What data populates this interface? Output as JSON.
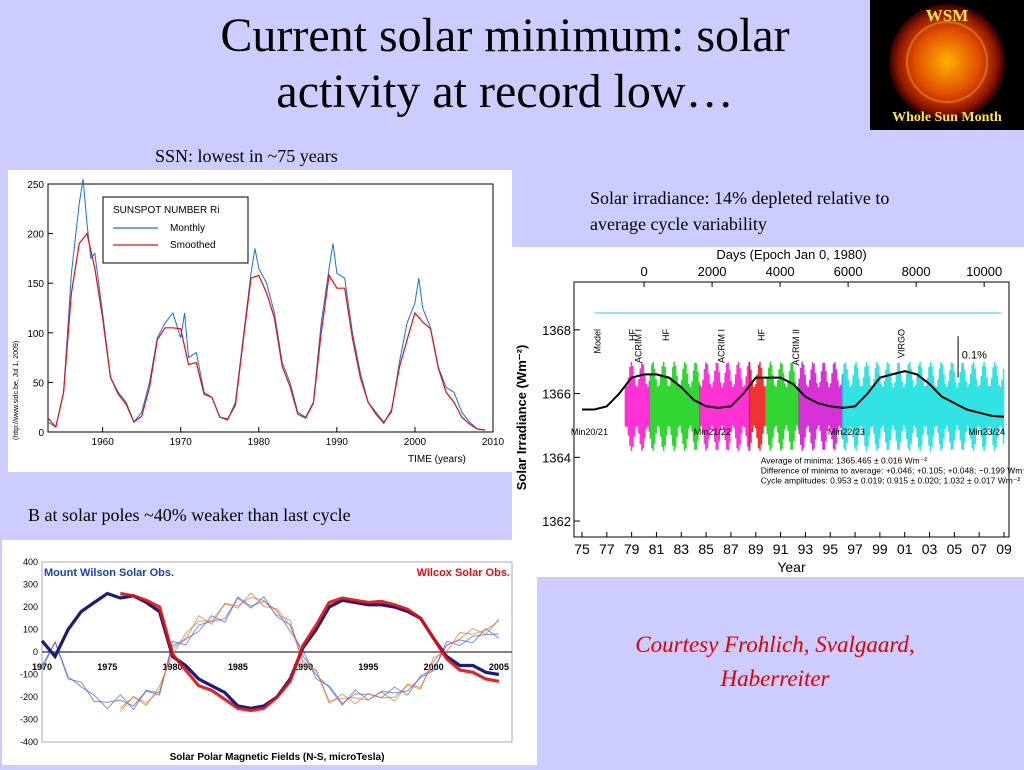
{
  "title_line1": "Current solar minimum: solar",
  "title_line2": "activity at record low…",
  "logo": {
    "top_text": "WSM",
    "bottom_text": "Whole Sun Month"
  },
  "captions": {
    "ssn": "SSN: lowest in ~75 years",
    "irradiance_line1": "Solar irradiance: 14% depleted relative to",
    "irradiance_line2": "average cycle variability",
    "polar": "B at solar poles ~40% weaker than last cycle"
  },
  "credit_line1": "Courtesy Frohlich, Svalgaard,",
  "credit_line2": "Haberreiter",
  "colors": {
    "background": "#ccccff",
    "credit": "#e00000",
    "monthly": "#1a6fe0",
    "smoothed": "#e01010"
  },
  "chart_data": [
    {
      "type": "line",
      "legend_title": "SUNSPOT NUMBER Ri",
      "legend_placement": "top-left",
      "xlabel": "TIME (years)",
      "side_note": "(http://www.sidc.be, Jul 1, 2009)",
      "xlim": [
        1953,
        2010
      ],
      "ylim": [
        0,
        250
      ],
      "xticks": [
        1960,
        1970,
        1980,
        1990,
        2000,
        2010
      ],
      "yticks": [
        0,
        50,
        100,
        150,
        200,
        250
      ],
      "series": [
        {
          "name": "Monthly",
          "color": "#1a6fe0",
          "x": [
            1953,
            1954,
            1955,
            1956,
            1957,
            1957.5,
            1958,
            1958.5,
            1959,
            1960,
            1961,
            1962,
            1963,
            1964,
            1965,
            1966,
            1967,
            1968,
            1969,
            1970,
            1970.5,
            1971,
            1972,
            1973,
            1974,
            1975,
            1976,
            1977,
            1978,
            1979,
            1979.5,
            1980,
            1981,
            1982,
            1983,
            1984,
            1985,
            1986,
            1987,
            1988,
            1989,
            1989.5,
            1990,
            1991,
            1992,
            1993,
            1994,
            1995,
            1996,
            1997,
            1998,
            1999,
            2000,
            2000.5,
            2001,
            2002,
            2003,
            2004,
            2005,
            2006,
            2007,
            2008,
            2009
          ],
          "y": [
            10,
            5,
            40,
            160,
            230,
            255,
            210,
            175,
            180,
            120,
            55,
            40,
            30,
            10,
            20,
            50,
            95,
            110,
            120,
            95,
            120,
            75,
            80,
            40,
            35,
            15,
            12,
            30,
            95,
            160,
            185,
            165,
            150,
            120,
            70,
            50,
            20,
            15,
            30,
            110,
            165,
            190,
            160,
            155,
            100,
            60,
            30,
            20,
            10,
            20,
            70,
            110,
            130,
            155,
            125,
            105,
            65,
            45,
            40,
            20,
            10,
            3,
            2
          ]
        },
        {
          "name": "Smoothed",
          "color": "#e01010",
          "x": [
            1953,
            1954,
            1955,
            1956,
            1957,
            1958,
            1959,
            1960,
            1961,
            1962,
            1963,
            1964,
            1965,
            1966,
            1967,
            1968,
            1969,
            1970,
            1971,
            1972,
            1973,
            1974,
            1975,
            1976,
            1977,
            1978,
            1979,
            1980,
            1981,
            1982,
            1983,
            1984,
            1985,
            1986,
            1987,
            1988,
            1989,
            1990,
            1991,
            1992,
            1993,
            1994,
            1995,
            1996,
            1997,
            1998,
            1999,
            2000,
            2001,
            2002,
            2003,
            2004,
            2005,
            2006,
            2007,
            2008,
            2009
          ],
          "y": [
            14,
            5,
            40,
            140,
            190,
            200,
            165,
            115,
            55,
            38,
            28,
            10,
            16,
            45,
            93,
            105,
            105,
            104,
            68,
            70,
            38,
            35,
            15,
            13,
            27,
            92,
            155,
            158,
            140,
            115,
            66,
            46,
            18,
            14,
            29,
            100,
            158,
            145,
            145,
            94,
            55,
            30,
            18,
            9,
            22,
            65,
            93,
            120,
            111,
            104,
            64,
            40,
            30,
            15,
            8,
            3,
            2
          ]
        }
      ]
    },
    {
      "type": "line",
      "top_axis_label": "Days (Epoch Jan 0, 1980)",
      "top_ticks": [
        0,
        2000,
        4000,
        6000,
        8000,
        10000
      ],
      "xlabel": "Year",
      "ylabel": "Solar Irradiance (Wm⁻²)",
      "ylim": [
        1361.5,
        1369.5
      ],
      "yticks": [
        1362,
        1364,
        1366,
        1368
      ],
      "xticks": [
        "75",
        "77",
        "79",
        "81",
        "83",
        "85",
        "87",
        "89",
        "91",
        "93",
        "95",
        "97",
        "99",
        "01",
        "03",
        "05",
        "07",
        "09"
      ],
      "instrument_labels": [
        "Model",
        "HF",
        "ACRIM I",
        "HF",
        "ACRIM I",
        "HF",
        "ACRIM II",
        "VIRGO"
      ],
      "minima_labels": [
        "Min20/21",
        "Min21/22",
        "Min22/23",
        "Min23/24"
      ],
      "scale_bar": "0.1%",
      "annotations": [
        "Average of minima:  1365.465 ± 0.016 Wm⁻²",
        "Difference of minima to average: +0.046; +0.105; +0.048; −0.199 Wm⁻²",
        "Cycle amplitudes:  0.953 ± 0.019; 0.915 ± 0.020; 1.032 ± 0.017 Wm⁻²"
      ],
      "series": [
        {
          "name": "",
          "color": "#000000",
          "x": [
            1975,
            1976,
            1977,
            1978,
            1979,
            1980,
            1981,
            1982,
            1983,
            1984,
            1985,
            1986,
            1987,
            1988,
            1989,
            1990,
            1991,
            1992,
            1993,
            1994,
            1995,
            1996,
            1997,
            1998,
            1999,
            2000,
            2001,
            2002,
            2003,
            2004,
            2005,
            2006,
            2007,
            2008,
            2009
          ],
          "y": [
            1365.5,
            1365.5,
            1365.6,
            1366.0,
            1366.5,
            1366.6,
            1366.6,
            1366.5,
            1366.2,
            1365.8,
            1365.6,
            1365.55,
            1365.6,
            1366.0,
            1366.5,
            1366.5,
            1366.5,
            1366.3,
            1365.9,
            1365.7,
            1365.6,
            1365.55,
            1365.6,
            1366.0,
            1366.5,
            1366.6,
            1366.7,
            1366.6,
            1366.3,
            1365.9,
            1365.7,
            1365.5,
            1365.4,
            1365.3,
            1365.27
          ]
        }
      ]
    },
    {
      "type": "line",
      "legend_labels": [
        "Mount Wilson Solar Obs.",
        "Wilcox Solar Obs."
      ],
      "xlabel": "Solar Polar Magnetic Fields (N-S, microTesla)",
      "xlim": [
        1970,
        2006
      ],
      "ylim": [
        -400,
        400
      ],
      "xticks": [
        1970,
        1975,
        1980,
        1985,
        1990,
        1995,
        2000,
        2005
      ],
      "yticks": [
        400,
        300,
        200,
        100,
        0,
        -100,
        -200,
        -300,
        -400
      ],
      "series": [
        {
          "name": "Mount Wilson Solar Obs.",
          "color": "#1a1a80",
          "x": [
            1970,
            1971,
            1972,
            1973,
            1974,
            1975,
            1976,
            1977,
            1978,
            1979,
            1980,
            1981,
            1982,
            1983,
            1984,
            1985,
            1986,
            1987,
            1988,
            1989,
            1990,
            1991,
            1992,
            1993,
            1994,
            1995,
            1996,
            1997,
            1998,
            1999,
            2000,
            2001,
            2002,
            2003,
            2004,
            2005
          ],
          "y": [
            50,
            -20,
            100,
            180,
            220,
            260,
            240,
            250,
            220,
            180,
            -20,
            -60,
            -120,
            -150,
            -180,
            -240,
            -250,
            -240,
            -200,
            -120,
            20,
            100,
            200,
            230,
            220,
            210,
            210,
            200,
            180,
            150,
            60,
            -20,
            -60,
            -60,
            -90,
            -100
          ]
        },
        {
          "name": "Wilcox Solar Obs.",
          "color": "#e01010",
          "x": [
            1976,
            1977,
            1978,
            1979,
            1980,
            1981,
            1982,
            1983,
            1984,
            1985,
            1986,
            1987,
            1988,
            1989,
            1990,
            1991,
            1992,
            1993,
            1994,
            1995,
            1996,
            1997,
            1998,
            1999,
            2000,
            2001,
            2002,
            2003,
            2004,
            2005
          ],
          "y": [
            260,
            250,
            230,
            200,
            -10,
            -80,
            -150,
            -170,
            -210,
            -250,
            -260,
            -250,
            -200,
            -130,
            30,
            120,
            220,
            240,
            230,
            220,
            225,
            210,
            190,
            150,
            60,
            -30,
            -80,
            -90,
            -120,
            -130
          ]
        }
      ]
    }
  ]
}
